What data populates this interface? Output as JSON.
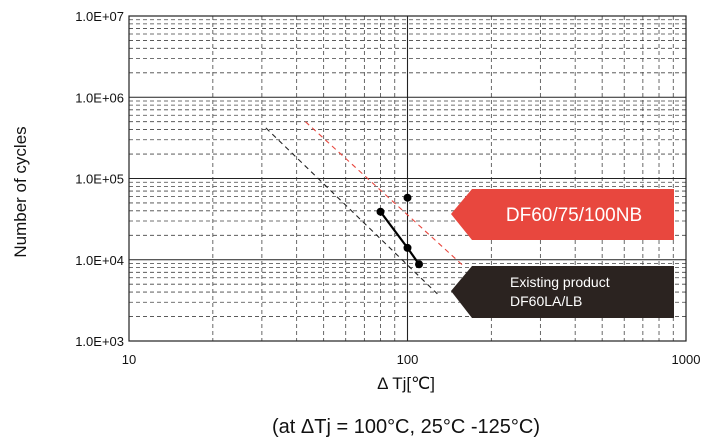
{
  "chart_data": {
    "type": "line",
    "xscale": "log",
    "yscale": "log",
    "xlim": [
      10,
      1000
    ],
    "ylim": [
      1000,
      10000000
    ],
    "xticks": [
      "10",
      "100",
      "1000"
    ],
    "yticks": [
      "1.0E+03",
      "1.0E+04",
      "1.0E+05",
      "1.0E+06",
      "1.0E+07"
    ],
    "xlabel": "Δ Tj[℃]",
    "ylabel": "Number of cycles",
    "caption": "(at ΔTj = 100°C, 25°C -125°C)",
    "grid": true,
    "series": [
      {
        "name": "DF60/75/100NB",
        "color": "#e8473e",
        "style": "dashed",
        "x": [
          43,
          160
        ],
        "y": [
          500000,
          8200
        ],
        "markers": {
          "x": [
            100
          ],
          "y": [
            58000
          ]
        }
      },
      {
        "name": "Existing product DF60LA/LB",
        "color": "#222222",
        "style": "dashed",
        "x": [
          31,
          128
        ],
        "y": [
          420000,
          3800
        ],
        "measured": {
          "x": [
            80,
            100,
            110
          ],
          "y": [
            39000,
            14000,
            8800
          ]
        }
      }
    ],
    "annotations": [
      {
        "text": "DF60/75/100NB",
        "color": "#e8473e",
        "text_color": "#ffffff"
      },
      {
        "lines": [
          "Existing product",
          "DF60LA/LB"
        ],
        "color": "#2b2320",
        "text_color": "#ffffff"
      }
    ]
  }
}
